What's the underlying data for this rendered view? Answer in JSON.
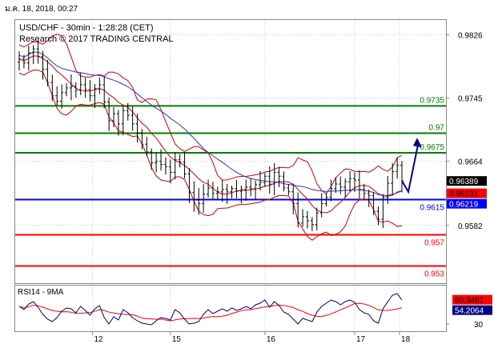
{
  "timestamp": "ม.ค. 18, 2018, 00:27",
  "header": {
    "line1": "USD/CHF - 30min - 1:28:28 (CET)",
    "line2": "Research © 2017 TRADING CENTRAL"
  },
  "colors": {
    "green": "#008000",
    "red": "#ff0000",
    "blue": "#0000ff",
    "navy": "#000080",
    "candle": "#000000",
    "bollinger": "#cc0000",
    "ma": "#3333cc",
    "grid": "#c8c8c8",
    "projection": "#00008b"
  },
  "chart_data": [
    {
      "type": "ohlc",
      "title": "USD/CHF - 30min - 1:28:28 (CET)",
      "y_ticks": [
        "0.9826",
        "0.9745",
        "0.9664",
        "0.9582"
      ],
      "x_ticks": [
        "12",
        "15",
        "16",
        "17",
        "18"
      ],
      "ylim": [
        0.9508,
        0.9845
      ],
      "grid": true,
      "levels": [
        {
          "value": 0.9735,
          "label": "0.9735",
          "color": "#008000"
        },
        {
          "value": 0.97,
          "label": "0.97",
          "color": "#008000"
        },
        {
          "value": 0.9675,
          "label": "0.9675",
          "color": "#008000"
        },
        {
          "value": 0.9615,
          "label": "0.9615",
          "color": "#0000ff"
        },
        {
          "value": 0.957,
          "label": "0.957",
          "color": "#ff0000"
        },
        {
          "value": 0.953,
          "label": "0.953",
          "color": "#ff0000"
        }
      ],
      "price_tags": [
        {
          "value": 0.96389,
          "label": "0.96389",
          "bg": "#000000",
          "fg": "#ffffff"
        },
        {
          "value": 0.96231,
          "label": "0.96231",
          "bg": "#ff0000",
          "fg": "#000000"
        },
        {
          "value": 0.96219,
          "label": "0.96219",
          "bg": "#0000ff",
          "fg": "#ffffff"
        }
      ],
      "series_close": [
        0.9795,
        0.979,
        0.9803,
        0.9808,
        0.9798,
        0.9782,
        0.9765,
        0.9748,
        0.9741,
        0.9752,
        0.9758,
        0.976,
        0.9755,
        0.9762,
        0.9756,
        0.9748,
        0.9757,
        0.9762,
        0.974,
        0.9716,
        0.9725,
        0.9712,
        0.9729,
        0.9723,
        0.9712,
        0.97,
        0.9686,
        0.9676,
        0.9662,
        0.9664,
        0.966,
        0.9657,
        0.965,
        0.9666,
        0.9663,
        0.9648,
        0.9624,
        0.9615,
        0.961,
        0.9622,
        0.963,
        0.9623,
        0.9625,
        0.9628,
        0.9625,
        0.9629,
        0.9626,
        0.9628,
        0.9631,
        0.9629,
        0.9634,
        0.9637,
        0.9645,
        0.9635,
        0.965,
        0.9645,
        0.963,
        0.9625,
        0.961,
        0.9585,
        0.9593,
        0.9588,
        0.9583,
        0.9598,
        0.961,
        0.9618,
        0.9629,
        0.9635,
        0.9631,
        0.9638,
        0.9642,
        0.964,
        0.9628,
        0.9623,
        0.962,
        0.96,
        0.959,
        0.9618,
        0.9636,
        0.9651,
        0.9659,
        0.9639
      ],
      "projection_path": [
        0.9639,
        0.9625,
        0.9685
      ],
      "subchart": {
        "label": "RSI14 - 9MA",
        "y_ticks": [
          "30"
        ],
        "ylim": [
          22,
          78
        ],
        "tags": [
          {
            "value": 60.3461,
            "label": "60.3461",
            "bg": "#ff0000",
            "fg": "#000000"
          },
          {
            "value": 54.2064,
            "label": "54.2064",
            "bg": "#000080",
            "fg": "#ffffff"
          }
        ],
        "rsi": [
          52,
          48,
          55,
          58,
          51,
          42,
          36,
          33,
          38,
          46,
          50,
          49,
          44,
          52,
          47,
          41,
          49,
          53,
          38,
          30,
          39,
          35,
          48,
          44,
          38,
          34,
          31,
          30,
          29,
          34,
          38,
          37,
          35,
          48,
          44,
          36,
          30,
          31,
          33,
          42,
          48,
          43,
          46,
          49,
          46,
          50,
          47,
          49,
          52,
          49,
          54,
          56,
          60,
          51,
          58,
          53,
          45,
          42,
          36,
          30,
          37,
          35,
          33,
          45,
          52,
          56,
          60,
          58,
          54,
          58,
          60,
          57,
          48,
          44,
          42,
          34,
          31,
          49,
          58,
          66,
          68,
          60
        ]
      }
    }
  ]
}
